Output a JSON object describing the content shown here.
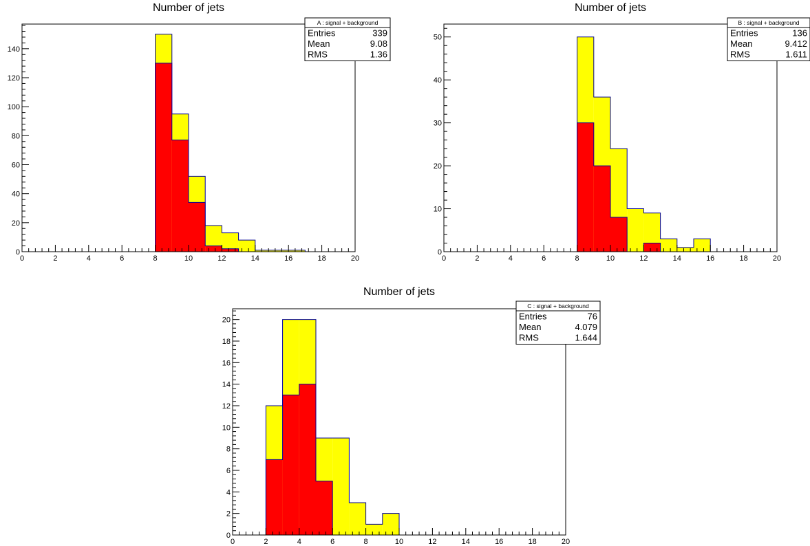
{
  "chart_data": [
    {
      "type": "bar",
      "title": "Number of jets",
      "xlabel": "",
      "ylabel": "",
      "xlim": [
        0,
        20
      ],
      "ylim": [
        0,
        157
      ],
      "x_ticks": [
        0,
        2,
        4,
        6,
        8,
        10,
        12,
        14,
        16,
        18,
        20
      ],
      "y_ticks": [
        0,
        20,
        40,
        60,
        80,
        100,
        120,
        140
      ],
      "bin_width": 1,
      "bin_edges_start": [
        8,
        9,
        10,
        11,
        12,
        13,
        14,
        15,
        16
      ],
      "series": [
        {
          "name": "signal + background",
          "color": "#ffff00",
          "values": [
            150,
            95,
            52,
            18,
            13,
            8,
            1,
            1,
            1
          ]
        },
        {
          "color": "#ff0000",
          "values": [
            130,
            77,
            34,
            4,
            2,
            0,
            0,
            0,
            0
          ]
        }
      ],
      "stats": {
        "header": "A : signal + background",
        "rows": [
          {
            "label": "Entries",
            "value": "339"
          },
          {
            "label": "Mean",
            "value": "9.08"
          },
          {
            "label": "RMS",
            "value": "1.36"
          }
        ]
      }
    },
    {
      "type": "bar",
      "title": "Number of jets",
      "xlabel": "",
      "ylabel": "",
      "xlim": [
        0,
        20
      ],
      "ylim": [
        0,
        53
      ],
      "x_ticks": [
        0,
        2,
        4,
        6,
        8,
        10,
        12,
        14,
        16,
        18,
        20
      ],
      "y_ticks": [
        0,
        10,
        20,
        30,
        40,
        50
      ],
      "bin_width": 1,
      "bin_edges_start": [
        8,
        9,
        10,
        11,
        12,
        13,
        14,
        15
      ],
      "series": [
        {
          "name": "signal + background",
          "color": "#ffff00",
          "values": [
            50,
            36,
            24,
            10,
            9,
            3,
            1,
            3
          ]
        },
        {
          "color": "#ff0000",
          "values": [
            30,
            20,
            8,
            0,
            2,
            0,
            0,
            0
          ]
        }
      ],
      "stats": {
        "header": "B : signal + background",
        "rows": [
          {
            "label": "Entries",
            "value": "136"
          },
          {
            "label": "Mean",
            "value": "9.412"
          },
          {
            "label": "RMS",
            "value": "1.611"
          }
        ]
      }
    },
    {
      "type": "bar",
      "title": "Number of jets",
      "xlabel": "",
      "ylabel": "",
      "xlim": [
        0,
        20
      ],
      "ylim": [
        0,
        21
      ],
      "x_ticks": [
        0,
        2,
        4,
        6,
        8,
        10,
        12,
        14,
        16,
        18,
        20
      ],
      "y_ticks": [
        0,
        2,
        4,
        6,
        8,
        10,
        12,
        14,
        16,
        18,
        20
      ],
      "bin_width": 1,
      "bin_edges_start": [
        2,
        3,
        4,
        5,
        6,
        7,
        8,
        9
      ],
      "series": [
        {
          "name": "signal + background",
          "color": "#ffff00",
          "values": [
            12,
            20,
            20,
            9,
            9,
            3,
            1,
            2
          ]
        },
        {
          "color": "#ff0000",
          "values": [
            7,
            13,
            14,
            5,
            0,
            0,
            0,
            0
          ]
        }
      ],
      "stats": {
        "header": "C : signal + background",
        "rows": [
          {
            "label": "Entries",
            "value": "76"
          },
          {
            "label": "Mean",
            "value": "4.079"
          },
          {
            "label": "RMS",
            "value": "1.644"
          }
        ]
      }
    }
  ]
}
